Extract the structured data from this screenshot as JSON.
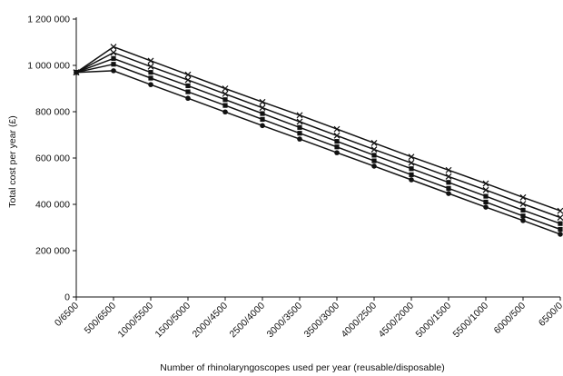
{
  "chart_data": {
    "type": "line",
    "title": "",
    "xlabel": "Number of rhinolaryngoscopes used per year (reusable/disposable)",
    "ylabel": "Total cost per year (£)",
    "categories": [
      "0/6500",
      "500/6500",
      "1000/5500",
      "1500/5000",
      "2000/4500",
      "2500/4000",
      "3000/3500",
      "3500/3000",
      "4000/2500",
      "4500/2000",
      "5000/1500",
      "5500/1000",
      "6000/500",
      "6500/0"
    ],
    "ylim": [
      0,
      1200000
    ],
    "yticks": [
      0,
      200000,
      400000,
      600000,
      800000,
      1000000,
      1200000
    ],
    "ytick_labels": [
      "0",
      "200 000",
      "400 000",
      "600 000",
      "800 000",
      "1 000 000",
      "1 200 000"
    ],
    "grid": false,
    "legend": "none",
    "series": [
      {
        "marker": "cross",
        "values": [
          970000,
          1080000,
          1020000,
          960000,
          900000,
          842000,
          785000,
          725000,
          665000,
          605000,
          548000,
          490000,
          430000,
          372000
        ]
      },
      {
        "marker": "cross",
        "values": [
          970000,
          1055000,
          995000,
          937000,
          877000,
          817000,
          757000,
          697000,
          637000,
          579000,
          520000,
          462000,
          402000,
          343000
        ]
      },
      {
        "marker": "square",
        "values": [
          970000,
          1030000,
          970000,
          912000,
          852000,
          792000,
          732000,
          672000,
          612000,
          554000,
          495000,
          435000,
          375000,
          317000
        ]
      },
      {
        "marker": "square",
        "values": [
          970000,
          1005000,
          945000,
          886000,
          827000,
          767000,
          707000,
          648000,
          588000,
          528000,
          469000,
          410000,
          350000,
          292000
        ]
      },
      {
        "marker": "circle",
        "values": [
          970000,
          977000,
          917000,
          858000,
          799000,
          740000,
          682000,
          623000,
          565000,
          506000,
          447000,
          388000,
          330000,
          271000
        ]
      }
    ],
    "colors": {
      "line": "#111111",
      "axis": "#111111"
    }
  }
}
